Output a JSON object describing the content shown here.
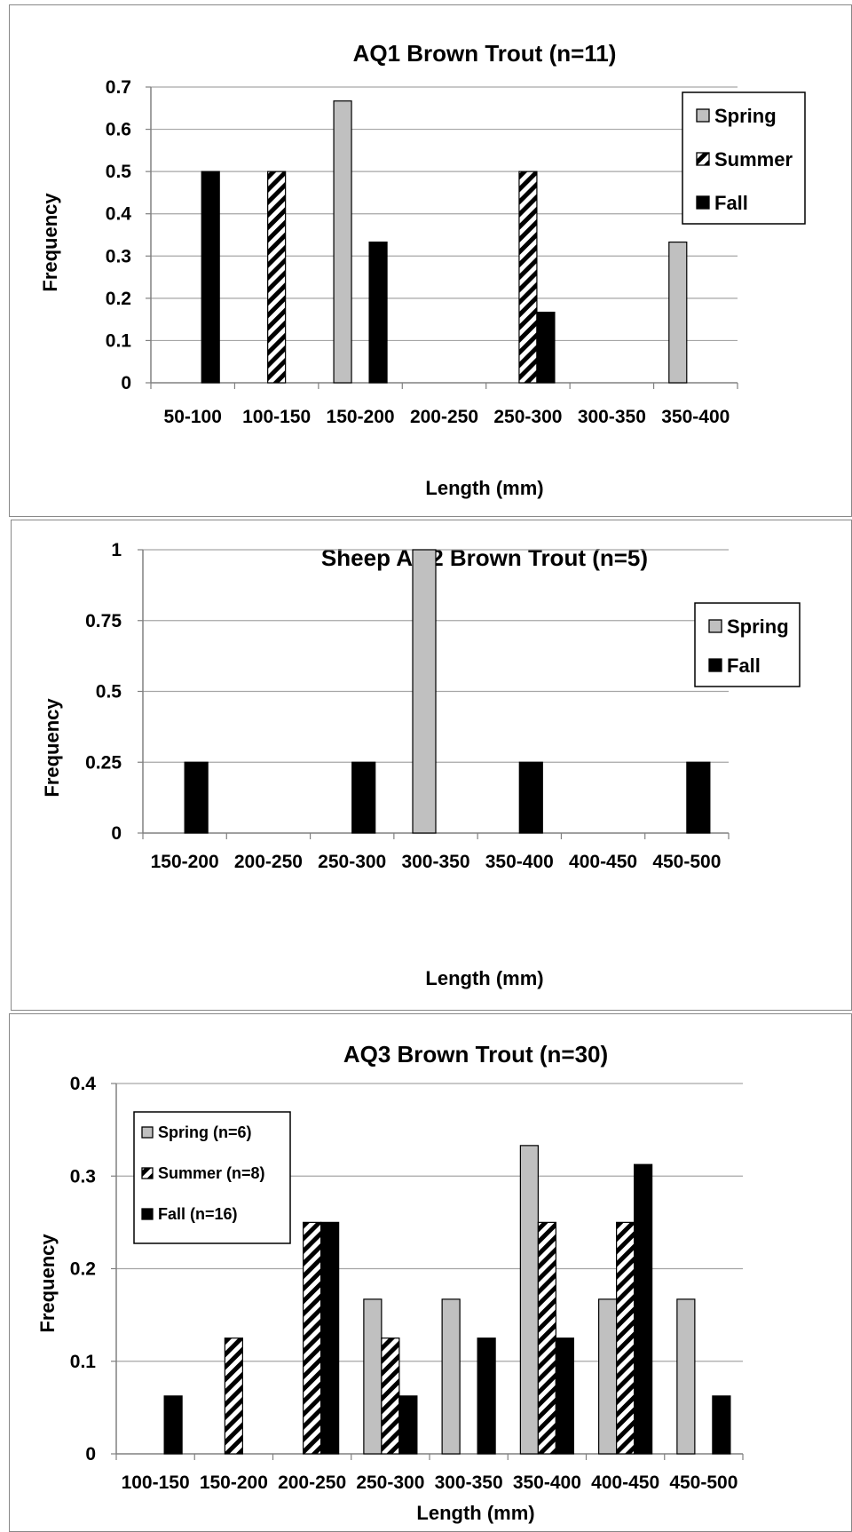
{
  "colors": {
    "spring": "#c0c0c0",
    "summer": "hatched",
    "fall": "#000000",
    "grid": "#a6a6a6"
  },
  "charts": [
    {
      "title": "AQ1  Brown Trout (n=11)",
      "xlabel": "Length (mm)",
      "ylabel": "Frequency",
      "yticks": [
        "0",
        "0.1",
        "0.2",
        "0.3",
        "0.4",
        "0.5",
        "0.6",
        "0.7"
      ],
      "legend": [
        "Spring",
        "Summer",
        "Fall"
      ]
    },
    {
      "title": "Sheep AQ2  Brown Trout (n=5)",
      "xlabel": "Length (mm)",
      "ylabel": "Frequency",
      "yticks": [
        "0",
        "0.25",
        "0.5",
        "0.75",
        "1"
      ],
      "legend": [
        "Spring",
        "Fall"
      ]
    },
    {
      "title": "AQ3  Brown Trout (n=30)",
      "xlabel": "Length (mm)",
      "ylabel": "Frequency",
      "yticks": [
        "0",
        "0.1",
        "0.2",
        "0.3",
        "0.4"
      ],
      "legend": [
        "Spring (n=6)",
        "Summer (n=8)",
        "Fall (n=16)"
      ]
    }
  ],
  "chart_data": [
    {
      "type": "bar",
      "title": "AQ1  Brown Trout (n=11)",
      "xlabel": "Length (mm)",
      "ylabel": "Frequency",
      "ylim": [
        0,
        0.7
      ],
      "categories": [
        "50-100",
        "100-150",
        "150-200",
        "200-250",
        "250-300",
        "300-350",
        "350-400"
      ],
      "series": [
        {
          "name": "Spring",
          "values": [
            0,
            0,
            0.667,
            0,
            0,
            0,
            0.333
          ]
        },
        {
          "name": "Summer",
          "values": [
            0,
            0.5,
            0,
            0,
            0.5,
            0,
            0
          ]
        },
        {
          "name": "Fall",
          "values": [
            0.5,
            0,
            0.333,
            0,
            0.167,
            0,
            0
          ]
        }
      ],
      "legend": "top-right",
      "grid": true
    },
    {
      "type": "bar",
      "title": "Sheep AQ2  Brown Trout (n=5)",
      "xlabel": "Length (mm)",
      "ylabel": "Frequency",
      "ylim": [
        0,
        1
      ],
      "categories": [
        "150-200",
        "200-250",
        "250-300",
        "300-350",
        "350-400",
        "400-450",
        "450-500"
      ],
      "series": [
        {
          "name": "Spring",
          "values": [
            0,
            0,
            0,
            1,
            0,
            0,
            0
          ]
        },
        {
          "name": "Fall",
          "values": [
            0.25,
            0,
            0.25,
            0,
            0.25,
            0,
            0.25
          ]
        }
      ],
      "legend": "top-right",
      "grid": true
    },
    {
      "type": "bar",
      "title": "AQ3  Brown Trout (n=30)",
      "xlabel": "Length (mm)",
      "ylabel": "Frequency",
      "ylim": [
        0,
        0.4
      ],
      "categories": [
        "100-150",
        "150-200",
        "200-250",
        "250-300",
        "300-350",
        "350-400",
        "400-450",
        "450-500"
      ],
      "series": [
        {
          "name": "Spring (n=6)",
          "values": [
            0,
            0,
            0,
            0.167,
            0.167,
            0.333,
            0.167,
            0.167
          ]
        },
        {
          "name": "Summer (n=8)",
          "values": [
            0,
            0.125,
            0.25,
            0.125,
            0,
            0.25,
            0.25,
            0
          ]
        },
        {
          "name": "Fall (n=16)",
          "values": [
            0.0625,
            0,
            0.25,
            0.0625,
            0.125,
            0.125,
            0.3125,
            0.0625
          ]
        }
      ],
      "legend": "top-left",
      "grid": true
    }
  ]
}
